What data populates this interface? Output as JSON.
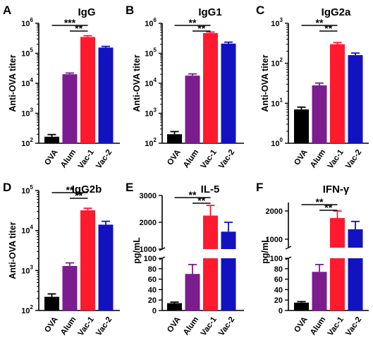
{
  "colors": {
    "OVA": "#000000",
    "Alum": "#7b1d8f",
    "Vac-1": "#ff1a2e",
    "Vac-2": "#1212c0"
  },
  "chart_data": [
    {
      "panel": "A",
      "type": "bar",
      "title": "IgG",
      "ylabel": "Anti-OVA titer",
      "yscale": "log",
      "ylim": [
        100,
        1000000
      ],
      "yticks": [
        {
          "v": 100,
          "b": "10",
          "e": "2"
        },
        {
          "v": 1000,
          "b": "10",
          "e": "3"
        },
        {
          "v": 10000,
          "b": "10",
          "e": "4"
        },
        {
          "v": 100000,
          "b": "10",
          "e": "5"
        },
        {
          "v": 1000000,
          "b": "10",
          "e": "6"
        }
      ],
      "categories": [
        "OVA",
        "Alum",
        "Vac-1",
        "Vac-2"
      ],
      "values": [
        165,
        20000,
        350000,
        155000
      ],
      "errors": [
        30,
        2000,
        35000,
        15000
      ],
      "significance": [
        {
          "from": 0,
          "to": 2,
          "label": "***"
        },
        {
          "from": 1,
          "to": 2,
          "label": "**"
        }
      ]
    },
    {
      "panel": "B",
      "type": "bar",
      "title": "IgG1",
      "ylabel": "Anti-OVA titer",
      "yscale": "log",
      "ylim": [
        100,
        1000000
      ],
      "yticks": [
        {
          "v": 100,
          "b": "10",
          "e": "2"
        },
        {
          "v": 1000,
          "b": "10",
          "e": "3"
        },
        {
          "v": 10000,
          "b": "10",
          "e": "4"
        },
        {
          "v": 100000,
          "b": "10",
          "e": "5"
        },
        {
          "v": 1000000,
          "b": "10",
          "e": "6"
        }
      ],
      "categories": [
        "OVA",
        "Alum",
        "Vac-1",
        "Vac-2"
      ],
      "values": [
        200,
        18000,
        470000,
        210000
      ],
      "errors": [
        45,
        2500,
        40000,
        25000
      ],
      "significance": [
        {
          "from": 0,
          "to": 2,
          "label": "**"
        },
        {
          "from": 1,
          "to": 2,
          "label": "**"
        }
      ]
    },
    {
      "panel": "C",
      "type": "bar",
      "title": "IgG2a",
      "ylabel": "Anti-OVA titer",
      "yscale": "log",
      "ylim": [
        1,
        1000
      ],
      "yticks": [
        {
          "v": 1,
          "b": "10",
          "e": "0"
        },
        {
          "v": 10,
          "b": "10",
          "e": "1"
        },
        {
          "v": 100,
          "b": "10",
          "e": "2"
        },
        {
          "v": 1000,
          "b": "10",
          "e": "3"
        }
      ],
      "categories": [
        "OVA",
        "Alum",
        "Vac-1",
        "Vac-2"
      ],
      "values": [
        7,
        28,
        300,
        160
      ],
      "errors": [
        1,
        4,
        30,
        20
      ],
      "significance": [
        {
          "from": 0,
          "to": 2,
          "label": "**"
        },
        {
          "from": 1,
          "to": 2,
          "label": "**"
        }
      ]
    },
    {
      "panel": "D",
      "type": "bar",
      "title": "IgG2b",
      "ylabel": "Anti-OVA titer",
      "yscale": "log",
      "ylim": [
        100,
        100000
      ],
      "yticks": [
        {
          "v": 100,
          "b": "10",
          "e": "2"
        },
        {
          "v": 1000,
          "b": "10",
          "e": "3"
        },
        {
          "v": 10000,
          "b": "10",
          "e": "4"
        },
        {
          "v": 100000,
          "b": "10",
          "e": "5"
        }
      ],
      "categories": [
        "OVA",
        "Alum",
        "Vac-1",
        "Vac-2"
      ],
      "values": [
        220,
        1300,
        32000,
        14000
      ],
      "errors": [
        40,
        250,
        4000,
        3000
      ],
      "significance": [
        {
          "from": 0,
          "to": 2,
          "label": "**"
        },
        {
          "from": 1,
          "to": 2,
          "label": "**"
        }
      ]
    },
    {
      "panel": "E",
      "type": "bar",
      "title": "IL-5",
      "ylabel": "pg/mL",
      "yscale": "broken",
      "lower_ylim": [
        0,
        100
      ],
      "upper_ylim": [
        1000,
        3000
      ],
      "lower_ticks": [
        "0",
        "20",
        "40",
        "60",
        "80",
        "100"
      ],
      "upper_ticks": [
        "1000",
        "2000",
        "3000"
      ],
      "categories": [
        "OVA",
        "Alum",
        "Vac-1",
        "Vac-2"
      ],
      "values": [
        14,
        70,
        2250,
        1650
      ],
      "errors": [
        2,
        18,
        380,
        350
      ],
      "significance": [
        {
          "from": 0,
          "to": 2,
          "label": "**"
        },
        {
          "from": 1,
          "to": 2,
          "label": "**"
        }
      ]
    },
    {
      "panel": "F",
      "type": "bar",
      "title": "IFN-γ",
      "ylabel": "pg/mL",
      "yscale": "broken",
      "lower_ylim": [
        0,
        100
      ],
      "upper_ylim": [
        700,
        2300
      ],
      "lower_ticks": [
        "0",
        "20",
        "40",
        "60",
        "80",
        "100"
      ],
      "upper_ticks": [
        "1000",
        "2000"
      ],
      "categories": [
        "OVA",
        "Alum",
        "Vac-1",
        "Vac-2"
      ],
      "values": [
        15,
        74,
        1750,
        1350
      ],
      "errors": [
        2,
        14,
        250,
        280
      ],
      "significance": [
        {
          "from": 0,
          "to": 2,
          "label": "**"
        },
        {
          "from": 1,
          "to": 2,
          "label": "**"
        }
      ]
    }
  ]
}
